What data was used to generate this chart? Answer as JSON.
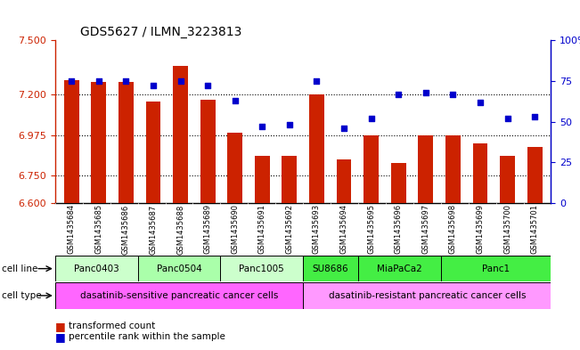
{
  "title": "GDS5627 / ILMN_3223813",
  "samples": [
    "GSM1435684",
    "GSM1435685",
    "GSM1435686",
    "GSM1435687",
    "GSM1435688",
    "GSM1435689",
    "GSM1435690",
    "GSM1435691",
    "GSM1435692",
    "GSM1435693",
    "GSM1435694",
    "GSM1435695",
    "GSM1435696",
    "GSM1435697",
    "GSM1435698",
    "GSM1435699",
    "GSM1435700",
    "GSM1435701"
  ],
  "transformed_count": [
    7.28,
    7.27,
    7.27,
    7.16,
    7.36,
    7.17,
    6.99,
    6.86,
    6.86,
    7.2,
    6.84,
    6.975,
    6.82,
    6.975,
    6.975,
    6.93,
    6.86,
    6.91
  ],
  "percentile": [
    75,
    75,
    75,
    72,
    75,
    72,
    63,
    47,
    48,
    75,
    46,
    52,
    67,
    68,
    67,
    62,
    52,
    53
  ],
  "ylim_left": [
    6.6,
    7.5
  ],
  "ylim_right": [
    0,
    100
  ],
  "yticks_left": [
    6.6,
    6.75,
    6.975,
    7.2,
    7.5
  ],
  "yticks_right": [
    0,
    25,
    50,
    75,
    100
  ],
  "bar_color": "#cc2200",
  "dot_color": "#0000cc",
  "cell_lines": [
    {
      "label": "Panc0403",
      "start": 0,
      "end": 3,
      "color": "#ccffcc"
    },
    {
      "label": "Panc0504",
      "start": 3,
      "end": 6,
      "color": "#aaffaa"
    },
    {
      "label": "Panc1005",
      "start": 6,
      "end": 9,
      "color": "#ccffcc"
    },
    {
      "label": "SU8686",
      "start": 9,
      "end": 11,
      "color": "#44ee44"
    },
    {
      "label": "MiaPaCa2",
      "start": 11,
      "end": 14,
      "color": "#44ee44"
    },
    {
      "label": "Panc1",
      "start": 14,
      "end": 18,
      "color": "#44ee44"
    }
  ],
  "cell_types": [
    {
      "label": "dasatinib-sensitive pancreatic cancer cells",
      "start": 0,
      "end": 9,
      "color": "#ff66ff"
    },
    {
      "label": "dasatinib-resistant pancreatic cancer cells",
      "start": 9,
      "end": 18,
      "color": "#ff99ff"
    }
  ],
  "tick_color_left": "#cc2200",
  "tick_color_right": "#0000cc",
  "bar_width": 0.55,
  "gridline_yticks": [
    6.75,
    6.975,
    7.2
  ],
  "xtick_bg_color": "#cccccc"
}
